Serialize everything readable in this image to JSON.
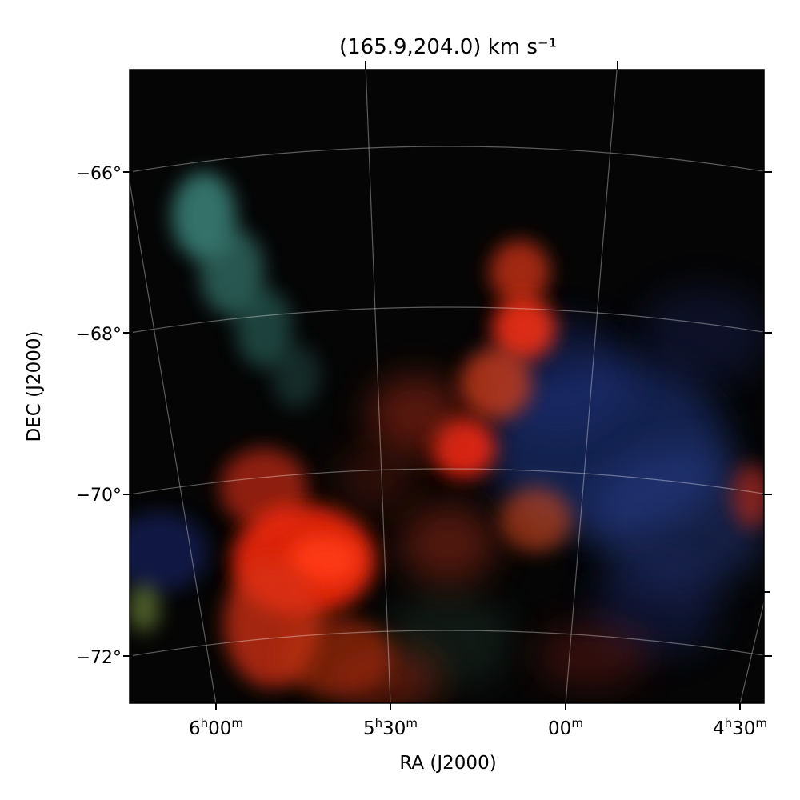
{
  "chart_data": {
    "type": "heatmap",
    "title": "(165.9,204.0) km s⁻¹",
    "xlabel": "RA (J2000)",
    "ylabel": "DEC (J2000)",
    "x_ticks": [
      {
        "h": "6",
        "m": "00"
      },
      {
        "h": "5",
        "m": "30"
      },
      {
        "h": "",
        "m": "00"
      },
      {
        "h": "4",
        "m": "30"
      }
    ],
    "y_ticks": [
      "−66°",
      "−68°",
      "−70°",
      "−72°"
    ],
    "dec_values": [
      -66,
      -68,
      -70,
      -72
    ],
    "ra_values_hours": [
      6.0,
      5.5,
      5.0,
      4.5
    ],
    "grid": true,
    "colormap": "RGB composite (red, green, blue velocity channels)",
    "features": [
      {
        "color": "#ff2a10",
        "description": "bright red emission ridge"
      },
      {
        "color": "#3a8a80",
        "description": "teal filament"
      },
      {
        "color": "#2a3a8a",
        "description": "diffuse blue emission"
      }
    ]
  }
}
